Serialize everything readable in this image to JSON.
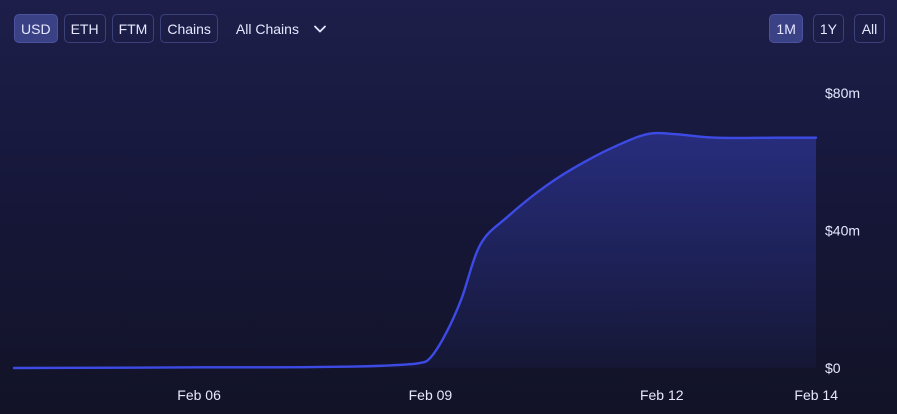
{
  "toolbar": {
    "currency_buttons": [
      "USD",
      "ETH",
      "FTM",
      "Chains"
    ],
    "active_currency": "USD",
    "chain_filter": "All Chains",
    "range_buttons": [
      "1M",
      "1Y",
      "All"
    ],
    "active_range": "1M"
  },
  "colors": {
    "line": "#3d4be6",
    "active_button": "#3b4185",
    "button_border": "#3c4179"
  },
  "chart_data": {
    "type": "area",
    "x_ticks": [
      "Feb 06",
      "Feb 09",
      "Feb 12",
      "Feb 14"
    ],
    "y_ticks": [
      "$0",
      "$40m",
      "$80m"
    ],
    "ylim": [
      0,
      80
    ],
    "grid": false,
    "series": [
      {
        "points": [
          [
            3.6,
            0.0
          ],
          [
            5,
            0.1
          ],
          [
            6,
            0.2
          ],
          [
            7,
            0.2
          ],
          [
            8,
            0.4
          ],
          [
            8.5,
            0.8
          ],
          [
            8.85,
            1.4
          ],
          [
            9,
            3
          ],
          [
            9.2,
            10
          ],
          [
            9.4,
            20
          ],
          [
            9.65,
            36
          ],
          [
            10,
            44
          ],
          [
            10.5,
            53
          ],
          [
            11,
            60
          ],
          [
            11.5,
            65.5
          ],
          [
            11.85,
            68.2
          ],
          [
            12.2,
            68
          ],
          [
            12.7,
            67
          ],
          [
            13.5,
            67
          ],
          [
            14,
            67
          ]
        ]
      }
    ]
  }
}
